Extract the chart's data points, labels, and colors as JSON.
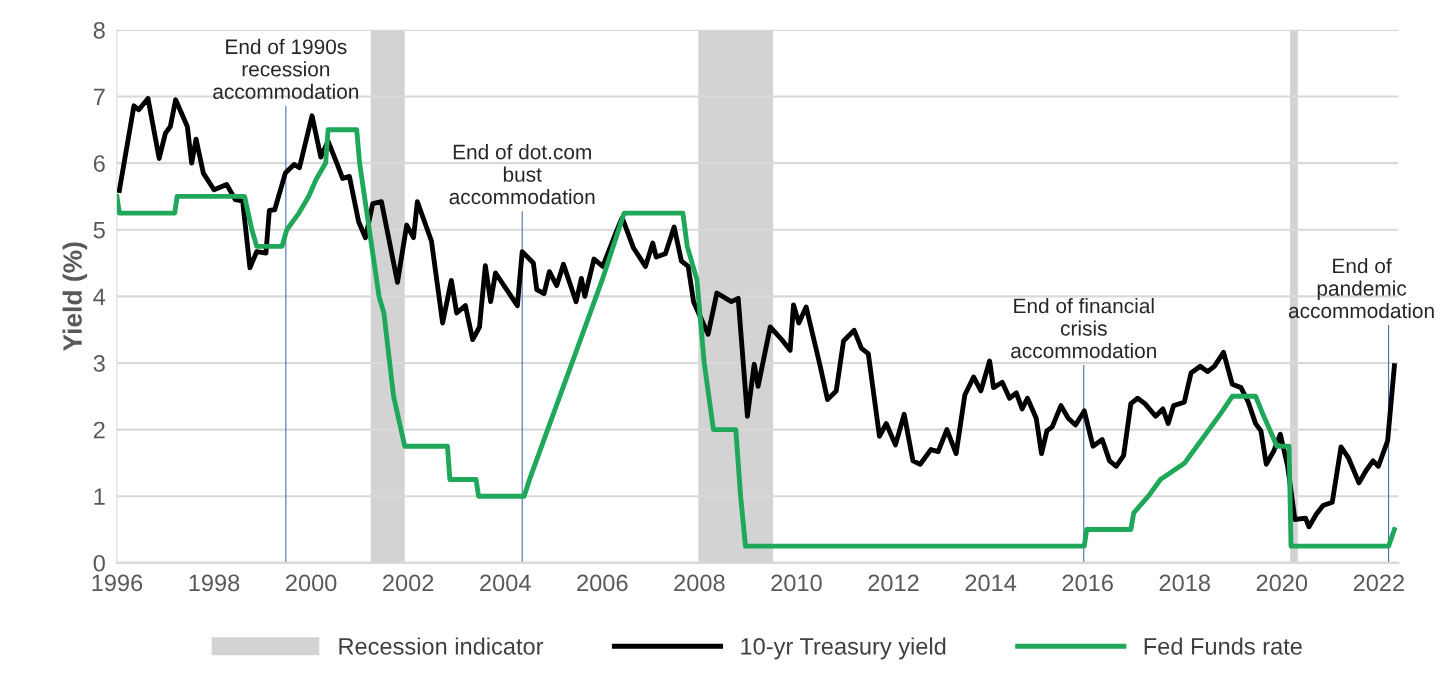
{
  "chart_data": {
    "type": "line",
    "ylabel": "Yield (%)",
    "xlim": [
      1996,
      2022.4
    ],
    "ylim": [
      0,
      8
    ],
    "xticks": [
      1996,
      1998,
      2000,
      2002,
      2004,
      2006,
      2008,
      2010,
      2012,
      2014,
      2016,
      2018,
      2020,
      2022
    ],
    "yticks": [
      0,
      1,
      2,
      3,
      4,
      5,
      6,
      7,
      8
    ],
    "grid": "y",
    "legend": "bottom",
    "marker": "none",
    "line_style": "solid",
    "series": [
      {
        "name": "10-yr Treasury yield",
        "color": "#000000",
        "x": [
          1996.05,
          1996.35,
          1996.45,
          1996.64,
          1996.87,
          1997.0,
          1997.1,
          1997.21,
          1997.45,
          1997.54,
          1997.63,
          1997.78,
          1998.0,
          1998.26,
          1998.44,
          1998.59,
          1998.74,
          1998.88,
          1999.07,
          1999.14,
          1999.25,
          1999.47,
          1999.65,
          1999.76,
          2000.02,
          2000.2,
          2000.35,
          2000.54,
          2000.65,
          2000.79,
          2000.98,
          2001.12,
          2001.27,
          2001.45,
          2001.78,
          2001.97,
          2002.11,
          2002.19,
          2002.48,
          2002.71,
          2002.89,
          2003.0,
          2003.18,
          2003.33,
          2003.47,
          2003.59,
          2003.7,
          2003.8,
          2004.25,
          2004.35,
          2004.58,
          2004.65,
          2004.8,
          2004.91,
          2005.06,
          2005.2,
          2005.46,
          2005.57,
          2005.64,
          2005.83,
          2006.01,
          2006.3,
          2006.41,
          2006.64,
          2006.89,
          2007.04,
          2007.11,
          2007.3,
          2007.48,
          2007.63,
          2007.77,
          2007.88,
          2008.18,
          2008.36,
          2008.66,
          2008.8,
          2008.99,
          2009.13,
          2009.21,
          2009.46,
          2009.72,
          2009.87,
          2009.94,
          2010.05,
          2010.2,
          2010.49,
          2010.64,
          2010.82,
          2010.97,
          2011.19,
          2011.34,
          2011.48,
          2011.71,
          2011.85,
          2012.04,
          2012.22,
          2012.4,
          2012.55,
          2012.77,
          2012.92,
          2013.1,
          2013.29,
          2013.47,
          2013.65,
          2013.8,
          2013.98,
          2014.06,
          2014.24,
          2014.39,
          2014.53,
          2014.65,
          2014.76,
          2014.94,
          2015.05,
          2015.16,
          2015.27,
          2015.45,
          2015.6,
          2015.75,
          2015.93,
          2016.11,
          2016.3,
          2016.45,
          2016.59,
          2016.74,
          2016.89,
          2017.03,
          2017.18,
          2017.4,
          2017.55,
          2017.66,
          2017.77,
          2017.99,
          2018.13,
          2018.32,
          2018.47,
          2018.61,
          2018.8,
          2018.98,
          2019.16,
          2019.31,
          2019.46,
          2019.57,
          2019.68,
          2019.83,
          2019.97,
          2020.12,
          2020.27,
          2020.49,
          2020.56,
          2020.71,
          2020.85,
          2021.04,
          2021.22,
          2021.37,
          2021.59,
          2021.74,
          2021.88,
          2021.99,
          2022.18,
          2022.32
        ],
        "values": [
          5.59,
          6.86,
          6.8,
          6.97,
          6.07,
          6.45,
          6.55,
          6.95,
          6.55,
          6.0,
          6.36,
          5.85,
          5.6,
          5.68,
          5.45,
          5.43,
          4.43,
          4.67,
          4.65,
          5.29,
          5.3,
          5.85,
          5.98,
          5.93,
          6.71,
          6.09,
          6.33,
          5.98,
          5.77,
          5.8,
          5.12,
          4.88,
          5.39,
          5.42,
          4.21,
          5.07,
          4.88,
          5.42,
          4.83,
          3.6,
          4.24,
          3.75,
          3.86,
          3.35,
          3.54,
          4.46,
          3.92,
          4.35,
          3.86,
          4.67,
          4.5,
          4.1,
          4.04,
          4.37,
          4.16,
          4.48,
          3.92,
          4.27,
          4.0,
          4.56,
          4.45,
          4.99,
          5.18,
          4.73,
          4.45,
          4.8,
          4.59,
          4.64,
          5.04,
          4.53,
          4.45,
          3.92,
          3.43,
          4.05,
          3.92,
          3.97,
          2.2,
          2.98,
          2.65,
          3.54,
          3.33,
          3.19,
          3.87,
          3.6,
          3.84,
          2.95,
          2.45,
          2.58,
          3.33,
          3.49,
          3.22,
          3.14,
          1.9,
          2.09,
          1.77,
          2.23,
          1.53,
          1.48,
          1.7,
          1.67,
          2.0,
          1.64,
          2.52,
          2.79,
          2.58,
          3.03,
          2.63,
          2.71,
          2.47,
          2.55,
          2.31,
          2.47,
          2.17,
          1.64,
          1.98,
          2.04,
          2.36,
          2.17,
          2.07,
          2.28,
          1.75,
          1.85,
          1.53,
          1.45,
          1.61,
          2.39,
          2.47,
          2.39,
          2.2,
          2.31,
          2.09,
          2.36,
          2.41,
          2.85,
          2.95,
          2.87,
          2.95,
          3.16,
          2.68,
          2.63,
          2.41,
          2.09,
          1.98,
          1.48,
          1.67,
          1.93,
          1.45,
          0.65,
          0.67,
          0.54,
          0.73,
          0.86,
          0.91,
          1.74,
          1.58,
          1.2,
          1.39,
          1.53,
          1.45,
          1.83,
          2.96
        ]
      },
      {
        "name": "Fed Funds rate",
        "color": "#1fa85a",
        "x": [
          1996.0,
          1996.05,
          1997.19,
          1997.24,
          1998.63,
          1998.78,
          1998.88,
          1999.4,
          1999.5,
          1999.75,
          1999.95,
          2000.1,
          2000.3,
          2000.35,
          2000.94,
          2001.0,
          2001.2,
          2001.4,
          2001.5,
          2001.7,
          2001.93,
          2002.81,
          2002.86,
          2003.4,
          2003.45,
          2004.39,
          2004.5,
          2005.0,
          2005.5,
          2006.0,
          2006.45,
          2007.66,
          2007.75,
          2007.95,
          2008.1,
          2008.29,
          2008.75,
          2008.85,
          2008.95,
          2015.93,
          2015.98,
          2016.89,
          2016.95,
          2017.25,
          2017.5,
          2018.0,
          2018.25,
          2018.5,
          2018.75,
          2018.98,
          2019.46,
          2019.6,
          2019.9,
          2020.15,
          2020.19,
          2022.2,
          2022.32
        ],
        "values": [
          5.5,
          5.25,
          5.25,
          5.5,
          5.5,
          5.0,
          4.75,
          4.75,
          5.0,
          5.25,
          5.5,
          5.75,
          6.0,
          6.5,
          6.5,
          6.0,
          5.0,
          4.0,
          3.75,
          2.5,
          1.75,
          1.75,
          1.25,
          1.25,
          1.0,
          1.0,
          1.25,
          2.25,
          3.25,
          4.25,
          5.25,
          5.25,
          4.75,
          4.25,
          3.0,
          2.0,
          2.0,
          1.0,
          0.25,
          0.25,
          0.5,
          0.5,
          0.75,
          1.0,
          1.25,
          1.5,
          1.75,
          2.0,
          2.25,
          2.5,
          2.5,
          2.25,
          1.75,
          1.75,
          0.25,
          0.25,
          0.5
        ]
      }
    ],
    "bands": [
      {
        "axis": "x",
        "from": 2001.23,
        "to": 2001.93,
        "label": "Recession indicator",
        "color": "#d3d3d3"
      },
      {
        "axis": "x",
        "from": 2007.98,
        "to": 2009.52,
        "color": "#d3d3d3"
      },
      {
        "axis": "x",
        "from": 2020.17,
        "to": 2020.33,
        "color": "#d3d3d3"
      }
    ],
    "ref_lines": [
      {
        "axis": "x",
        "value": 1999.48,
        "color": "#4a6fb5",
        "label": "End of 1990s\nrecession\naccommodation"
      },
      {
        "axis": "x",
        "value": 2004.35,
        "color": "#4a6fb5",
        "label": "End of dot.com\nbust\naccommodation"
      },
      {
        "axis": "x",
        "value": 2015.92,
        "color": "#4a6fb5",
        "label": "End of financial\ncrisis\naccommodation"
      },
      {
        "axis": "x",
        "value": 2022.2,
        "color": "#4a6fb5",
        "label": "End of\npandemic\naccommodation"
      }
    ]
  }
}
